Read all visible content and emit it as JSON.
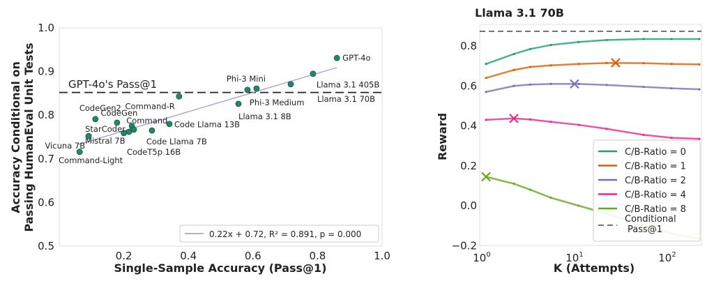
{
  "chart_data": [
    {
      "type": "scatter",
      "title": "",
      "xlabel": "Single-Sample Accuracy (Pass@1)",
      "ylabel": [
        "Accuracy Conditional on",
        "Passing HumanEval Unit Tests"
      ],
      "xlim": [
        0,
        1
      ],
      "ylim": [
        0.5,
        1.0
      ],
      "xticks": [
        "0.2",
        "0.4",
        "0.6",
        "0.8",
        "1.0"
      ],
      "xtick_values": [
        0.2,
        0.4,
        0.6,
        0.8,
        1.0
      ],
      "yticks": [
        "0.5",
        "0.6",
        "0.7",
        "0.8",
        "0.9",
        "1.0"
      ],
      "ytick_values": [
        0.5,
        0.6,
        0.7,
        0.8,
        0.9,
        1.0
      ],
      "reference_line": {
        "label": "GPT-4o's Pass@1",
        "y": 0.852
      },
      "fit": {
        "slope": 0.22,
        "intercept": 0.72,
        "x_range": [
          0.06,
          0.86
        ],
        "legend": "0.22x + 0.72, R² = 0.891, p = 0.000"
      },
      "points": [
        {
          "name": "GPT-4o",
          "x": 0.86,
          "y": 0.931
        },
        {
          "name": "Llama 3.1 405B",
          "x": 0.786,
          "y": 0.895
        },
        {
          "name": "Llama 3.1 70B",
          "x": 0.717,
          "y": 0.871
        },
        {
          "name": "Phi-3 Medium",
          "x": 0.611,
          "y": 0.861
        },
        {
          "name": "Phi-3 Mini",
          "x": 0.583,
          "y": 0.858
        },
        {
          "name": "Llama 3.1 8B",
          "x": 0.555,
          "y": 0.826
        },
        {
          "name": "Command-R",
          "x": 0.371,
          "y": 0.843
        },
        {
          "name": "Code Llama 13B",
          "x": 0.341,
          "y": 0.78
        },
        {
          "name": "Code Llama 7B",
          "x": 0.287,
          "y": 0.765
        },
        {
          "name": "Command",
          "x": 0.225,
          "y": 0.775
        },
        {
          "name": "CodeT5p 16B",
          "x": 0.231,
          "y": 0.767
        },
        {
          "name": "Mistral 7B",
          "x": 0.2,
          "y": 0.759
        },
        {
          "name": "",
          "x": 0.216,
          "y": 0.762
        },
        {
          "name": "CodeGen",
          "x": 0.179,
          "y": 0.783
        },
        {
          "name": "CodeGen2",
          "x": 0.112,
          "y": 0.791
        },
        {
          "name": "StarCoder",
          "x": 0.091,
          "y": 0.752
        },
        {
          "name": "Vicuna 7B",
          "x": 0.091,
          "y": 0.752
        },
        {
          "name": "Command-Light",
          "x": 0.063,
          "y": 0.716
        }
      ]
    },
    {
      "type": "line",
      "title": "Llama 3.1 70B",
      "xlabel": "K (Attempts)",
      "ylabel": "Reward",
      "xscale": "log",
      "xlim": [
        0.9,
        200
      ],
      "ylim": [
        -0.2,
        0.89
      ],
      "xticks": [
        "10",
        "10",
        "10"
      ],
      "xtick_exps": [
        "0",
        "1",
        "2"
      ],
      "xtick_values": [
        1,
        10,
        100
      ],
      "yticks": [
        "−0.2",
        "0.0",
        "0.2",
        "0.4",
        "0.6",
        "0.8"
      ],
      "ytick_values": [
        -0.2,
        0,
        0.2,
        0.4,
        0.6,
        0.8
      ],
      "x": [
        1,
        2,
        3,
        5,
        10,
        20,
        50,
        100,
        200
      ],
      "reference_line": {
        "label": "Conditional Pass@1",
        "y": 0.874
      },
      "legend_position": "lower-right",
      "series": [
        {
          "name": "C/B-Ratio = 0",
          "color": "#1b9e77",
          "values": [
            0.71,
            0.76,
            0.785,
            0.805,
            0.82,
            0.83,
            0.835,
            0.835,
            0.835
          ],
          "max": null
        },
        {
          "name": "C/B-Ratio = 1",
          "color": "#d95f02",
          "values": [
            0.64,
            0.68,
            0.695,
            0.703,
            0.71,
            0.715,
            0.714,
            0.71,
            0.708
          ],
          "max": {
            "x": 25,
            "y": 0.716
          }
        },
        {
          "name": "C/B-Ratio = 2",
          "color": "#7570b3",
          "values": [
            0.57,
            0.6,
            0.607,
            0.61,
            0.61,
            0.605,
            0.595,
            0.588,
            0.583
          ],
          "max": {
            "x": 9,
            "y": 0.61
          }
        },
        {
          "name": "C/B-Ratio = 4",
          "color": "#e7298a",
          "values": [
            0.43,
            0.437,
            0.432,
            0.42,
            0.405,
            0.385,
            0.355,
            0.34,
            0.335
          ],
          "max": {
            "x": 2,
            "y": 0.437
          }
        },
        {
          "name": "C/B-Ratio = 8",
          "color": "#66a61e",
          "values": [
            0.145,
            0.11,
            0.08,
            0.04,
            0.0,
            -0.04,
            -0.1,
            -0.14,
            -0.165
          ],
          "max": {
            "x": 1,
            "y": 0.145
          }
        }
      ]
    }
  ]
}
